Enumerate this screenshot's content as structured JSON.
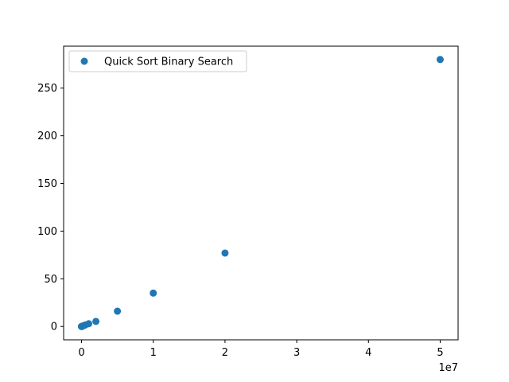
{
  "chart_data": {
    "type": "scatter",
    "title": "",
    "xlabel": "",
    "ylabel": "",
    "x_offset_label": "1e7",
    "xlim": [
      -2500000,
      52500000
    ],
    "ylim": [
      -14,
      294
    ],
    "xticks": [
      0,
      10000000,
      20000000,
      30000000,
      40000000,
      50000000
    ],
    "xtick_labels": [
      "0",
      "1",
      "2",
      "3",
      "4",
      "5"
    ],
    "yticks": [
      0,
      50,
      100,
      150,
      200,
      250
    ],
    "ytick_labels": [
      "0",
      "50",
      "100",
      "150",
      "200",
      "250"
    ],
    "grid": false,
    "legend": "top-left",
    "series": [
      {
        "name": "Quick Sort Binary Search",
        "color": "#1f77b4",
        "x": [
          10,
          100,
          1000,
          10000,
          50000,
          100000,
          200000,
          500000,
          1000000,
          2000000,
          5000000,
          10000000,
          20000000,
          50000000
        ],
        "y": [
          0,
          0,
          0,
          0,
          0.1,
          0.3,
          0.6,
          1.5,
          2.9,
          5.3,
          16,
          35,
          77,
          280
        ]
      }
    ]
  }
}
